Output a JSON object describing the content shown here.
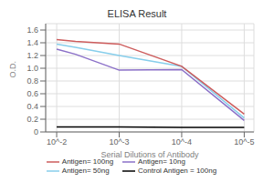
{
  "chart_data": {
    "type": "line",
    "title": "ELISA Result",
    "ylabel": "O.D.",
    "xlabel": "Serial Dilutions of Antibody",
    "x": [
      0.01,
      0.005,
      0.001,
      0.0001,
      1e-05
    ],
    "series": [
      {
        "name": "Control Antigen = 100ng",
        "color": "black",
        "values": [
          0.08,
          0.08,
          0.08,
          0.07,
          0.07
        ]
      },
      {
        "name": "Antigen= 10ng",
        "color": "#8B70C8",
        "values": [
          1.3,
          1.22,
          0.97,
          0.98,
          0.18
        ]
      },
      {
        "name": "Antigen= 50ng",
        "color": "#87CEEB",
        "values": [
          1.38,
          1.33,
          1.2,
          1.03,
          0.22
        ]
      },
      {
        "name": "Antigen= 100ng",
        "color": "#CD5C5C",
        "values": [
          1.45,
          1.42,
          1.38,
          1.03,
          0.28
        ]
      }
    ],
    "log": "x",
    "xlim": [
      0.015,
      7e-06
    ],
    "xticks": [
      {
        "value": 0.01,
        "label": "10^-2"
      },
      {
        "value": 0.001,
        "label": "10^-3"
      },
      {
        "value": 0.0001,
        "label": "10^-4"
      },
      {
        "value": 1e-05,
        "label": "10^-5"
      }
    ],
    "ylim": [
      0,
      1.7
    ],
    "yticks": [
      0,
      0.2,
      0.4,
      0.6,
      0.8,
      {
        "value": 1,
        "label": "1.0"
      },
      1.2,
      1.4,
      1.6
    ],
    "grid": true,
    "legend": "bottom"
  }
}
